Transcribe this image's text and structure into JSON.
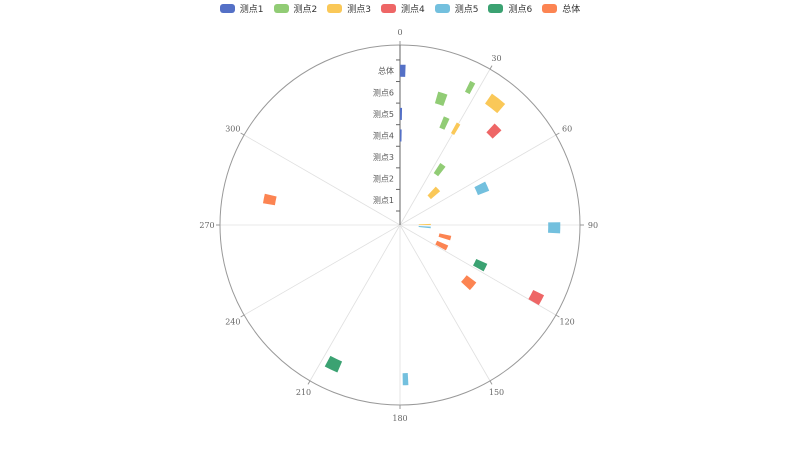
{
  "chart_data": {
    "type": "polar-bar",
    "angle_axis": {
      "min": 0,
      "max": 360,
      "ticks": [
        0,
        30,
        60,
        90,
        120,
        150,
        180,
        210,
        240,
        270,
        300
      ],
      "clockwise": true
    },
    "radius_axis": {
      "categories": [
        "测点1",
        "测点2",
        "测点3",
        "测点4",
        "测点5",
        "测点6",
        "总体"
      ]
    },
    "legend": {
      "position": "top-center"
    },
    "series": [
      {
        "name": "测点1",
        "color": "#5470c6",
        "bars": [
          {
            "category": "总体",
            "start": 0,
            "end": 2
          },
          {
            "category": "测点5",
            "start": 0,
            "end": 1
          },
          {
            "category": "测点4",
            "start": 0,
            "end": 1
          }
        ]
      },
      {
        "name": "测点2",
        "color": "#91cc75",
        "bars": [
          {
            "category": "测点6",
            "start": 16,
            "end": 20
          },
          {
            "category": "测点5",
            "start": 22,
            "end": 25
          },
          {
            "category": "测点3",
            "start": 33,
            "end": 38
          },
          {
            "category": "总体",
            "start": 26,
            "end": 28
          }
        ]
      },
      {
        "name": "测点3",
        "color": "#fac858",
        "bars": [
          {
            "category": "总体",
            "start": 35,
            "end": 41
          },
          {
            "category": "测点5",
            "start": 29,
            "end": 31
          },
          {
            "category": "测点2",
            "start": 43,
            "end": 50
          },
          {
            "category": "测点1",
            "start": 88,
            "end": 90
          }
        ]
      },
      {
        "name": "测点4",
        "color": "#ee6666",
        "bars": [
          {
            "category": "测点6",
            "start": 43,
            "end": 47
          },
          {
            "category": "总体",
            "start": 116,
            "end": 120
          }
        ]
      },
      {
        "name": "测点5",
        "color": "#73c0de",
        "bars": [
          {
            "category": "测点4",
            "start": 63,
            "end": 69
          },
          {
            "category": "总体",
            "start": 89,
            "end": 93
          },
          {
            "category": "测点1",
            "start": 93,
            "end": 96
          },
          {
            "category": "总体",
            "start": 177,
            "end": 179
          }
        ]
      },
      {
        "name": "测点6",
        "color": "#3ba272",
        "bars": [
          {
            "category": "测点4",
            "start": 114,
            "end": 119
          },
          {
            "category": "总体",
            "start": 203,
            "end": 208
          }
        ]
      },
      {
        "name": "总体",
        "color": "#fc8452",
        "bars": [
          {
            "category": "测点2",
            "start": 102,
            "end": 107
          },
          {
            "category": "测点2",
            "start": 113,
            "end": 119
          },
          {
            "category": "测点4",
            "start": 127,
            "end": 133
          },
          {
            "category": "测点6",
            "start": 279,
            "end": 283
          }
        ]
      }
    ]
  }
}
